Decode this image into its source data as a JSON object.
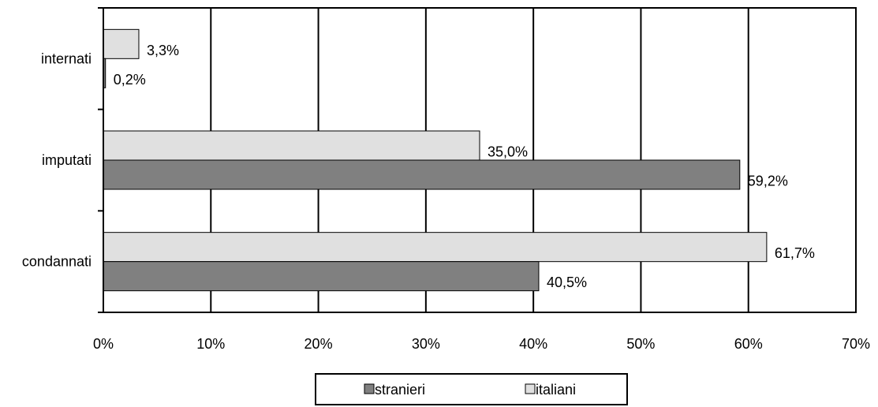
{
  "chart_data": {
    "type": "bar",
    "orientation": "horizontal",
    "categories": [
      "internati",
      "imputati",
      "condannati"
    ],
    "series": [
      {
        "name": "stranieri",
        "values": [
          0.2,
          59.2,
          40.5
        ],
        "labels": [
          "0,2%",
          "59,2%",
          "40,5%"
        ],
        "color": "#808080"
      },
      {
        "name": "italiani",
        "values": [
          3.3,
          35.0,
          61.7
        ],
        "labels": [
          "3,3%",
          "35,0%",
          "61,7%"
        ],
        "color": "#e0e0e0"
      }
    ],
    "xlim": [
      0,
      70
    ],
    "xticks": [
      0,
      10,
      20,
      30,
      40,
      50,
      60,
      70
    ],
    "xtick_labels": [
      "0%",
      "10%",
      "20%",
      "30%",
      "40%",
      "50%",
      "60%",
      "70%"
    ],
    "title": "",
    "xlabel": "",
    "ylabel": "",
    "grid": "vertical",
    "legend_position": "bottom"
  }
}
